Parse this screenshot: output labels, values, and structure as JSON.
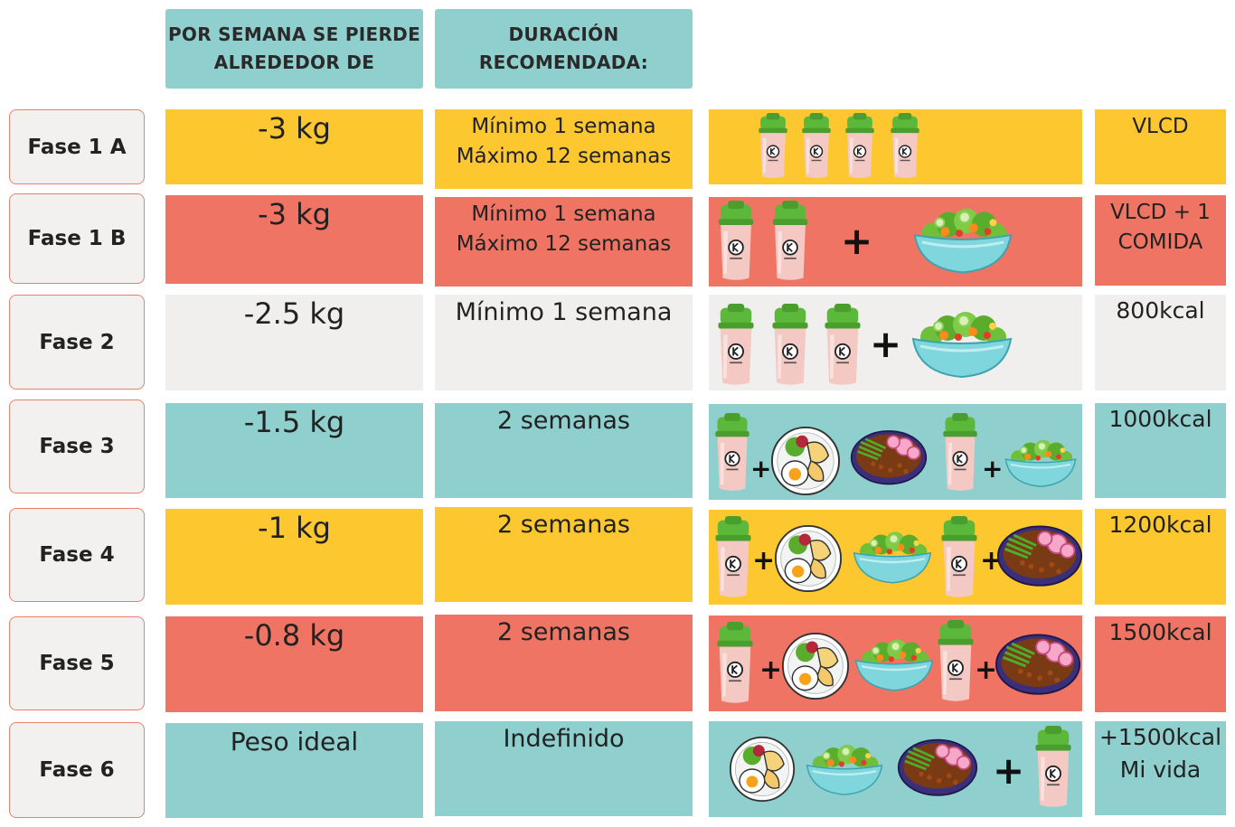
{
  "headers": {
    "loss": [
      "POR  SEMANA SE PIERDE",
      "ALREDEDOR DE"
    ],
    "duration": [
      "DURACIÓN",
      "RECOMENDADA:"
    ]
  },
  "colors": {
    "yellow": "#fdc82f",
    "coral": "#f07463",
    "grey": "#f0efed",
    "teal": "#8fcfce",
    "shaker_lid": "#5cb83a",
    "shaker_body": "#f4c9c4"
  },
  "rows": [
    {
      "phase": "Fase 1 A",
      "loss": "-3 kg",
      "duration": [
        "Mínimo 1 semana",
        "Máximo 12 semanas"
      ],
      "diet": [
        "VLCD"
      ],
      "color": "yellow",
      "icons": [
        "shake-icon",
        "shake-icon",
        "shake-icon",
        "shake-icon"
      ]
    },
    {
      "phase": "Fase 1 B",
      "loss": "-3 kg",
      "duration": [
        "Mínimo 1 semana",
        "Máximo 12 semanas"
      ],
      "diet": [
        "VLCD + 1",
        "COMIDA"
      ],
      "color": "coral",
      "icons": [
        "shake-icon",
        "shake-icon",
        "plus-icon",
        "salad-bowl-icon"
      ]
    },
    {
      "phase": "Fase 2",
      "loss": "-2.5 kg",
      "duration": [
        "Mínimo 1 semana"
      ],
      "diet": [
        "800kcal"
      ],
      "color": "grey",
      "icons": [
        "shake-icon",
        "shake-icon",
        "shake-icon",
        "plus-icon",
        "salad-bowl-icon"
      ]
    },
    {
      "phase": "Fase 3",
      "loss": "-1.5 kg",
      "duration": [
        "2 semanas"
      ],
      "diet": [
        "1000kcal"
      ],
      "color": "teal",
      "icons": [
        "shake-icon",
        "plus-icon",
        "egg-plate-icon",
        "bean-bowl-icon",
        "shake-icon",
        "plus-icon",
        "salad-bowl-icon"
      ]
    },
    {
      "phase": "Fase 4",
      "loss": "-1 kg",
      "duration": [
        "2 semanas"
      ],
      "diet": [
        "1200kcal"
      ],
      "color": "yellow",
      "icons": [
        "shake-icon",
        "plus-icon",
        "egg-plate-icon",
        "salad-bowl-icon",
        "shake-icon",
        "plus-icon",
        "bean-bowl-icon"
      ]
    },
    {
      "phase": "Fase 5",
      "loss": "-0.8 kg",
      "duration": [
        "2 semanas"
      ],
      "diet": [
        "1500kcal"
      ],
      "color": "coral",
      "icons": [
        "shake-icon",
        "plus-icon",
        "egg-plate-icon",
        "salad-bowl-icon",
        "shake-icon",
        "plus-icon",
        "bean-bowl-icon"
      ]
    },
    {
      "phase": "Fase 6",
      "loss": "Peso ideal",
      "duration": [
        "Indefinido"
      ],
      "diet": [
        "+1500kcal",
        "Mi vida"
      ],
      "color": "teal",
      "icons": [
        "egg-plate-icon",
        "salad-bowl-icon",
        "bean-bowl-icon",
        "plus-icon",
        "shake-icon"
      ]
    }
  ]
}
